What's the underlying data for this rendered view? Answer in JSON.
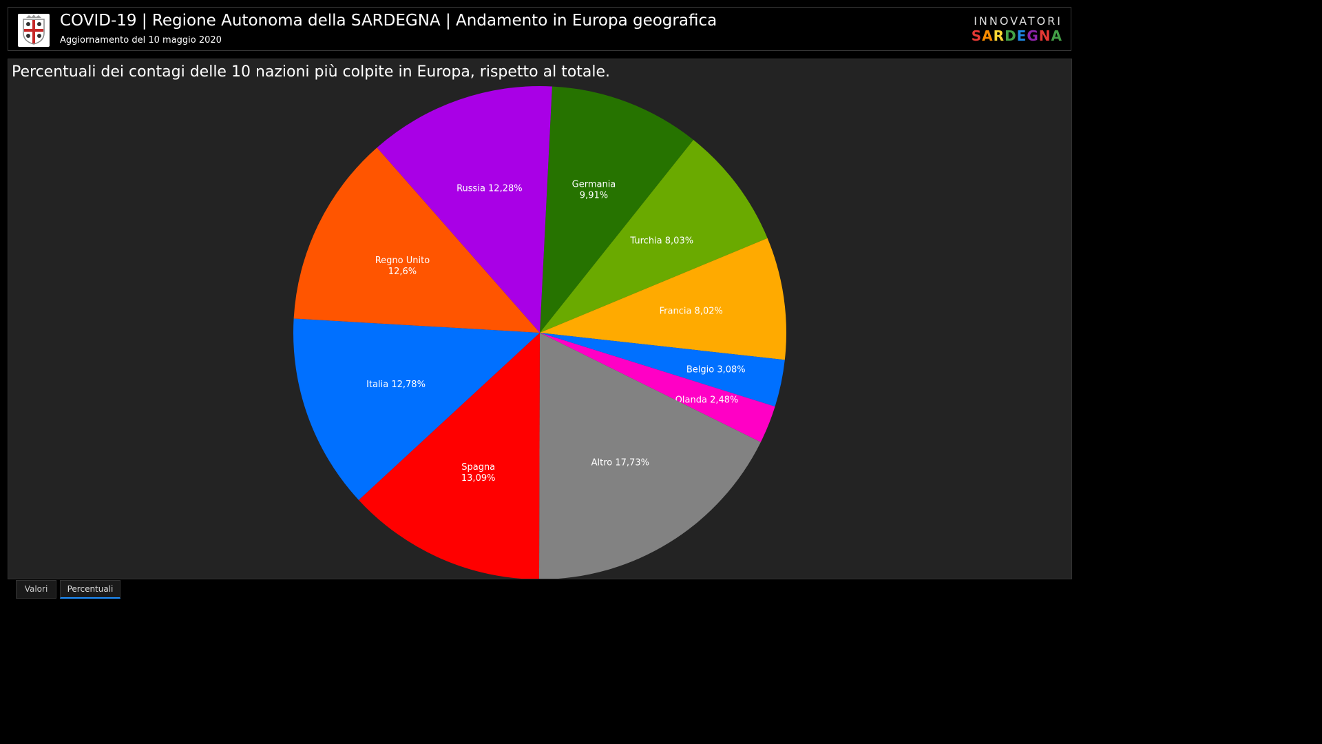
{
  "header": {
    "title": "COVID-19 | Regione Autonoma della SARDEGNA | Andamento in Europa geografica",
    "subtitle": "Aggiornamento del 10 maggio 2020",
    "brand_top": "INNOVATORI",
    "brand_bottom": "SARDEGNA",
    "brand_colors": [
      "#e53935",
      "#fb8c00",
      "#fdd835",
      "#43a047",
      "#1e88e5",
      "#8e24aa",
      "#e53935",
      "#43a047"
    ]
  },
  "panel": {
    "title": "Percentuali dei contagi delle 10 nazioni più colpite in Europa, rispetto al totale."
  },
  "tabs": [
    {
      "label": "Valori",
      "active": false
    },
    {
      "label": "Percentuali",
      "active": true
    }
  ],
  "chart_data": {
    "type": "pie",
    "title": "Percentuali dei contagi delle 10 nazioni più colpite in Europa, rispetto al totale.",
    "slices": [
      {
        "name": "Germania",
        "value": 9.91,
        "label": "Germania\n9,91%",
        "color": "#267300"
      },
      {
        "name": "Turchia",
        "value": 8.03,
        "label": "Turchia 8,03%",
        "color": "#6aaa00"
      },
      {
        "name": "Francia",
        "value": 8.02,
        "label": "Francia 8,02%",
        "color": "#ffaa00"
      },
      {
        "name": "Belgio",
        "value": 3.08,
        "label": "Belgio 3,08%",
        "color": "#0070ff"
      },
      {
        "name": "Olanda",
        "value": 2.48,
        "label": "Olanda 2,48%",
        "color": "#ff00c5"
      },
      {
        "name": "Altro",
        "value": 17.73,
        "label": "Altro 17,73%",
        "color": "#828282"
      },
      {
        "name": "Spagna",
        "value": 13.09,
        "label": "Spagna\n13,09%",
        "color": "#ff0000"
      },
      {
        "name": "Italia",
        "value": 12.78,
        "label": "Italia 12,78%",
        "color": "#0070ff"
      },
      {
        "name": "Regno Unito",
        "value": 12.6,
        "label": "Regno Unito\n12,6%",
        "color": "#ff5500"
      },
      {
        "name": "Russia",
        "value": 12.28,
        "label": "Russia 12,28%",
        "color": "#a900e6"
      }
    ]
  }
}
